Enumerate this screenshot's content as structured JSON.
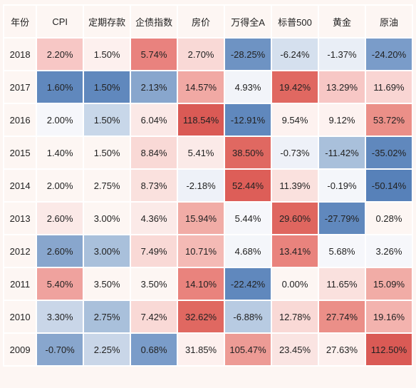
{
  "table": {
    "type": "heatmap-table",
    "header_font_size": 13,
    "cell_font_size": 13,
    "border_color": "#ffffff",
    "background_color": "#fdf6f3",
    "default_text_color": "#222222",
    "columns": [
      "年份",
      "CPI",
      "定期存款",
      "企债指数",
      "房价",
      "万得全A",
      "标普500",
      "黄金",
      "原油"
    ],
    "year_column_bg": "#fdf6f3",
    "rows": [
      {
        "year": "2018",
        "cells": [
          {
            "v": "2.20%",
            "bg": "#f7c7c5"
          },
          {
            "v": "1.50%",
            "bg": "#fdf0ee"
          },
          {
            "v": "5.74%",
            "bg": "#e9827e"
          },
          {
            "v": "2.70%",
            "bg": "#f9d9d6"
          },
          {
            "v": "-28.25%",
            "bg": "#6e93c3"
          },
          {
            "v": "-6.24%",
            "bg": "#d5e0ee"
          },
          {
            "v": "-1.37%",
            "bg": "#e9eef6"
          },
          {
            "v": "-24.20%",
            "bg": "#7a9cc9"
          }
        ]
      },
      {
        "year": "2017",
        "cells": [
          {
            "v": "1.60%",
            "bg": "#6088bd"
          },
          {
            "v": "1.50%",
            "bg": "#6088bd"
          },
          {
            "v": "2.13%",
            "bg": "#88a6cd"
          },
          {
            "v": "14.57%",
            "bg": "#f1a9a4"
          },
          {
            "v": "4.93%",
            "bg": "#f2f4f9"
          },
          {
            "v": "19.42%",
            "bg": "#e06861"
          },
          {
            "v": "13.29%",
            "bg": "#f7c7c5"
          },
          {
            "v": "11.69%",
            "bg": "#f9d5d3"
          }
        ]
      },
      {
        "year": "2016",
        "cells": [
          {
            "v": "2.00%",
            "bg": "#f6f7fb"
          },
          {
            "v": "1.50%",
            "bg": "#c8d7e9"
          },
          {
            "v": "6.04%",
            "bg": "#fbe9e7"
          },
          {
            "v": "118.54%",
            "bg": "#da5a55"
          },
          {
            "v": "-12.91%",
            "bg": "#6088bd"
          },
          {
            "v": "9.54%",
            "bg": "#fdf2f0"
          },
          {
            "v": "9.12%",
            "bg": "#fdf2f0"
          },
          {
            "v": "53.72%",
            "bg": "#eb8f88"
          }
        ]
      },
      {
        "year": "2015",
        "cells": [
          {
            "v": "1.40%",
            "bg": "#fdf6f3"
          },
          {
            "v": "1.50%",
            "bg": "#fdf6f3"
          },
          {
            "v": "8.84%",
            "bg": "#f9d9d6"
          },
          {
            "v": "5.41%",
            "bg": "#fbeae8"
          },
          {
            "v": "38.50%",
            "bg": "#e06861"
          },
          {
            "v": "-0.73%",
            "bg": "#eef1f8"
          },
          {
            "v": "-11.42%",
            "bg": "#a9c0db"
          },
          {
            "v": "-35.02%",
            "bg": "#6088bd"
          }
        ]
      },
      {
        "year": "2014",
        "cells": [
          {
            "v": "2.00%",
            "bg": "#fdf6f3"
          },
          {
            "v": "2.75%",
            "bg": "#fdf6f3"
          },
          {
            "v": "8.73%",
            "bg": "#fae1de"
          },
          {
            "v": "-2.18%",
            "bg": "#eef1f8"
          },
          {
            "v": "52.44%",
            "bg": "#dd5e58"
          },
          {
            "v": "11.39%",
            "bg": "#fae1de"
          },
          {
            "v": "-0.19%",
            "bg": "#f4f6fa"
          },
          {
            "v": "-50.14%",
            "bg": "#5781b9"
          }
        ]
      },
      {
        "year": "2013",
        "cells": [
          {
            "v": "2.60%",
            "bg": "#fbe9e7"
          },
          {
            "v": "3.00%",
            "bg": "#fdf6f3"
          },
          {
            "v": "4.36%",
            "bg": "#fbeae8"
          },
          {
            "v": "15.94%",
            "bg": "#f1aca6"
          },
          {
            "v": "5.44%",
            "bg": "#f6f7fb"
          },
          {
            "v": "29.60%",
            "bg": "#df665f"
          },
          {
            "v": "-27.79%",
            "bg": "#6088bd"
          },
          {
            "v": "0.28%",
            "bg": "#fdf6f3"
          }
        ]
      },
      {
        "year": "2012",
        "cells": [
          {
            "v": "2.60%",
            "bg": "#88a6cd"
          },
          {
            "v": "3.00%",
            "bg": "#a9c0db"
          },
          {
            "v": "7.49%",
            "bg": "#f9d9d6"
          },
          {
            "v": "10.71%",
            "bg": "#f4bab5"
          },
          {
            "v": "4.68%",
            "bg": "#f4f6fa"
          },
          {
            "v": "13.41%",
            "bg": "#e9837d"
          },
          {
            "v": "5.68%",
            "bg": "#f6f7fb"
          },
          {
            "v": "3.26%",
            "bg": "#f6f7fb"
          }
        ]
      },
      {
        "year": "2011",
        "cells": [
          {
            "v": "5.40%",
            "bg": "#efa29e"
          },
          {
            "v": "3.50%",
            "bg": "#fdf6f3"
          },
          {
            "v": "3.50%",
            "bg": "#fdf6f3"
          },
          {
            "v": "14.10%",
            "bg": "#e9837d"
          },
          {
            "v": "-22.42%",
            "bg": "#6088bd"
          },
          {
            "v": "0.00%",
            "bg": "#fdf6f3"
          },
          {
            "v": "11.65%",
            "bg": "#fae1de"
          },
          {
            "v": "15.09%",
            "bg": "#f1aca6"
          }
        ]
      },
      {
        "year": "2010",
        "cells": [
          {
            "v": "3.30%",
            "bg": "#c9d6e8"
          },
          {
            "v": "2.75%",
            "bg": "#a9c0db"
          },
          {
            "v": "7.42%",
            "bg": "#f9d9d6"
          },
          {
            "v": "32.62%",
            "bg": "#e06861"
          },
          {
            "v": "-6.88%",
            "bg": "#b8cbe2"
          },
          {
            "v": "12.78%",
            "bg": "#f9d9d6"
          },
          {
            "v": "27.74%",
            "bg": "#eb8f88"
          },
          {
            "v": "19.16%",
            "bg": "#f3b3ae"
          }
        ]
      },
      {
        "year": "2009",
        "cells": [
          {
            "v": "-0.70%",
            "bg": "#88a6cd"
          },
          {
            "v": "2.25%",
            "bg": "#c9d6e8"
          },
          {
            "v": "0.68%",
            "bg": "#7a9cc9"
          },
          {
            "v": "31.85%",
            "bg": "#fdf0ee"
          },
          {
            "v": "105.47%",
            "bg": "#ed9b95"
          },
          {
            "v": "23.45%",
            "bg": "#fae4e2"
          },
          {
            "v": "27.63%",
            "bg": "#fdf0ee"
          },
          {
            "v": "112.50%",
            "bg": "#da5a55"
          }
        ]
      }
    ]
  }
}
